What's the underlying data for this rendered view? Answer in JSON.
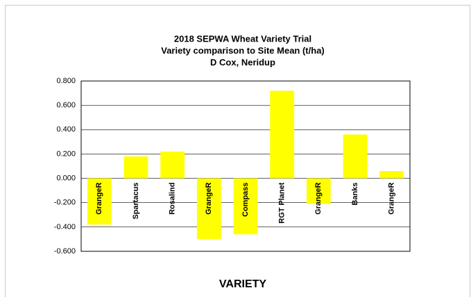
{
  "chart_data": {
    "type": "bar",
    "title": [
      "2018 SEPWA Wheat Variety Trial",
      "Variety comparison to Site Mean (t/ha)",
      "D Cox, Neridup"
    ],
    "x_label": "VARIETY",
    "categories": [
      "GrangeR",
      "Spartacus",
      "Rosalind",
      "GrangeR",
      "Compass",
      "RGT Planet",
      "GrangeR",
      "Banks",
      "GrangeR"
    ],
    "values": [
      -0.38,
      0.18,
      0.22,
      -0.5,
      -0.46,
      0.72,
      -0.21,
      0.36,
      0.06
    ],
    "color": "#ffff00",
    "ylim": [
      -0.6,
      0.8
    ],
    "yticks": [
      {
        "value": -0.6,
        "label": "-0.600"
      },
      {
        "value": -0.4,
        "label": "-0.400"
      },
      {
        "value": -0.2,
        "label": "-0.200"
      },
      {
        "value": 0,
        "label": "0.000"
      },
      {
        "value": 0.2,
        "label": "0.200"
      },
      {
        "value": 0.4,
        "label": "0.400"
      },
      {
        "value": 0.6,
        "label": "0.600"
      },
      {
        "value": 0.8,
        "label": "0.800"
      }
    ],
    "grid": true
  }
}
